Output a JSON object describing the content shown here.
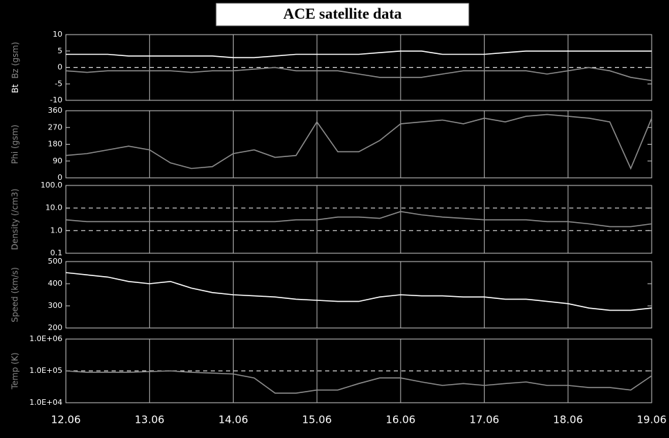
{
  "title": "ACE satellite data",
  "chart_data": [
    {
      "type": "line",
      "ylabel": [
        "Bt",
        "Bz (gsm)"
      ],
      "x": [
        12,
        12.25,
        12.5,
        12.75,
        13,
        13.25,
        13.5,
        13.75,
        14,
        14.25,
        14.5,
        14.75,
        15,
        15.25,
        15.5,
        15.75,
        16,
        16.25,
        16.5,
        16.75,
        17,
        17.25,
        17.5,
        17.75,
        18,
        18.25,
        18.5,
        18.75,
        19
      ],
      "ylim": [
        -10,
        10
      ],
      "yticks": [
        -10,
        -5,
        0,
        5,
        10
      ],
      "reference_lines": [
        0
      ],
      "series": [
        {
          "name": "Bt",
          "color": "#ffffff",
          "values": [
            4,
            4,
            4,
            3.5,
            3.5,
            3.5,
            3.5,
            3.5,
            3,
            3,
            3.5,
            4,
            4,
            4,
            4,
            4.5,
            5,
            5,
            4,
            4,
            4,
            4.5,
            5,
            5,
            5,
            5,
            5,
            5,
            5
          ]
        },
        {
          "name": "Bz",
          "color": "#8c8c8c",
          "values": [
            -1,
            -1.5,
            -1,
            -1,
            -1,
            -1,
            -1.5,
            -1,
            -1,
            -0.5,
            0,
            -1,
            -1,
            -1,
            -2,
            -3,
            -3,
            -3,
            -2,
            -1,
            -1,
            -1,
            -1,
            -2,
            -1,
            0,
            -1,
            -3,
            -4
          ]
        }
      ]
    },
    {
      "type": "line",
      "ylabel": "Phi (gsm)",
      "x": [
        12,
        12.25,
        12.5,
        12.75,
        13,
        13.25,
        13.5,
        13.75,
        14,
        14.25,
        14.5,
        14.75,
        15,
        15.25,
        15.5,
        15.75,
        16,
        16.25,
        16.5,
        16.75,
        17,
        17.25,
        17.5,
        17.75,
        18,
        18.25,
        18.5,
        18.75,
        19
      ],
      "ylim": [
        0,
        360
      ],
      "yticks": [
        0,
        90,
        180,
        270,
        360
      ],
      "series": [
        {
          "name": "Phi",
          "color": "#8c8c8c",
          "values": [
            120,
            130,
            150,
            170,
            150,
            80,
            50,
            60,
            130,
            150,
            110,
            120,
            300,
            140,
            140,
            200,
            290,
            300,
            310,
            290,
            320,
            300,
            330,
            340,
            330,
            320,
            300,
            50,
            320
          ]
        }
      ]
    },
    {
      "type": "line",
      "ylabel": "Density (/cm3)",
      "log_y": true,
      "x": [
        12,
        12.25,
        12.5,
        12.75,
        13,
        13.25,
        13.5,
        13.75,
        14,
        14.25,
        14.5,
        14.75,
        15,
        15.25,
        15.5,
        15.75,
        16,
        16.25,
        16.5,
        16.75,
        17,
        17.25,
        17.5,
        17.75,
        18,
        18.25,
        18.5,
        18.75,
        19
      ],
      "ylim": [
        0.1,
        100
      ],
      "yticks": [
        0.1,
        {
          "value": 1,
          "label": "1.0"
        },
        {
          "value": 10,
          "label": "10.0"
        },
        {
          "value": 100,
          "label": "100.0"
        }
      ],
      "reference_lines": [
        1,
        10
      ],
      "series": [
        {
          "name": "Density",
          "color": "#8c8c8c",
          "values": [
            3,
            2.5,
            2.5,
            2.5,
            2.5,
            2.5,
            2.5,
            2.5,
            2.5,
            2.5,
            2.5,
            3,
            3,
            4,
            4,
            3.5,
            7,
            5,
            4,
            3.5,
            3,
            3,
            3,
            2.5,
            2.5,
            2,
            1.5,
            1.5,
            2
          ]
        }
      ]
    },
    {
      "type": "line",
      "ylabel": "Speed (km/s)",
      "x": [
        12,
        12.25,
        12.5,
        12.75,
        13,
        13.25,
        13.5,
        13.75,
        14,
        14.25,
        14.5,
        14.75,
        15,
        15.25,
        15.5,
        15.75,
        16,
        16.25,
        16.5,
        16.75,
        17,
        17.25,
        17.5,
        17.75,
        18,
        18.25,
        18.5,
        18.75,
        19
      ],
      "ylim": [
        200,
        500
      ],
      "yticks": [
        200,
        300,
        400,
        500
      ],
      "series": [
        {
          "name": "Speed",
          "color": "#ffffff",
          "values": [
            450,
            440,
            430,
            410,
            400,
            410,
            380,
            360,
            350,
            345,
            340,
            330,
            325,
            320,
            320,
            340,
            350,
            345,
            345,
            340,
            340,
            330,
            330,
            320,
            310,
            290,
            280,
            280,
            290
          ]
        }
      ]
    },
    {
      "type": "line",
      "ylabel": "Temp (K)",
      "log_y": true,
      "x": [
        12,
        12.25,
        12.5,
        12.75,
        13,
        13.25,
        13.5,
        13.75,
        14,
        14.25,
        14.5,
        14.75,
        15,
        15.25,
        15.5,
        15.75,
        16,
        16.25,
        16.5,
        16.75,
        17,
        17.25,
        17.5,
        17.75,
        18,
        18.25,
        18.5,
        18.75,
        19
      ],
      "ylim": [
        10000,
        1000000
      ],
      "yticks": [
        {
          "value": 10000,
          "label": "1.0E+04"
        },
        {
          "value": 100000,
          "label": "1.0E+05"
        },
        {
          "value": 1000000,
          "label": "1.0E+06"
        }
      ],
      "reference_lines": [
        100000
      ],
      "xlim": [
        12,
        19
      ],
      "xticks": [
        {
          "value": 12,
          "label": "12.06"
        },
        {
          "value": 13,
          "label": "13.06"
        },
        {
          "value": 14,
          "label": "14.06"
        },
        {
          "value": 15,
          "label": "15.06"
        },
        {
          "value": 16,
          "label": "16.06"
        },
        {
          "value": 17,
          "label": "17.06"
        },
        {
          "value": 18,
          "label": "18.06"
        },
        {
          "value": 19,
          "label": "19.06"
        }
      ],
      "series": [
        {
          "name": "Temp",
          "color": "#8c8c8c",
          "values": [
            100000,
            90000,
            90000,
            90000,
            95000,
            100000,
            90000,
            85000,
            80000,
            60000,
            20000,
            20000,
            25000,
            25000,
            40000,
            60000,
            60000,
            45000,
            35000,
            40000,
            35000,
            40000,
            45000,
            35000,
            35000,
            30000,
            30000,
            25000,
            70000
          ]
        }
      ]
    }
  ]
}
